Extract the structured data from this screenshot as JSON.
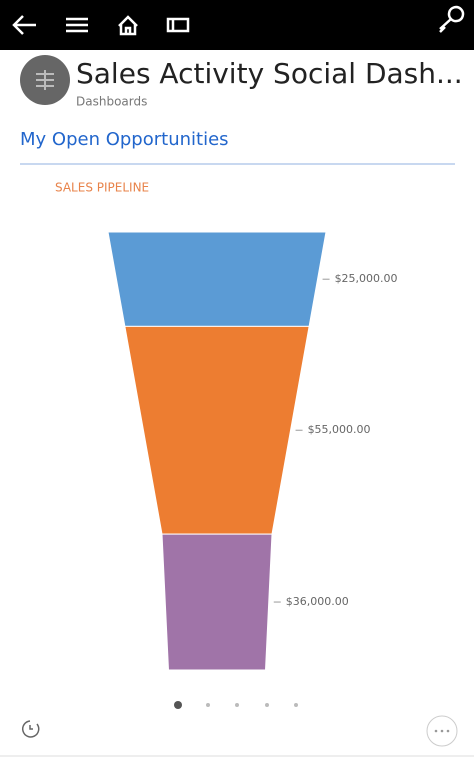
{
  "header": {
    "title": "Sales Activity Social Dash...",
    "subtitle": "Dashboards"
  },
  "section": {
    "title": "My Open Opportunities"
  },
  "chart_data": {
    "type": "funnel",
    "title": "SALES PIPELINE",
    "values": [
      25000,
      55000,
      36000
    ],
    "value_labels": [
      "$25,000.00",
      "$55,000.00",
      "$36,000.00"
    ],
    "colors": [
      "#5b9bd5",
      "#ed7d31",
      "#a074a8"
    ]
  }
}
